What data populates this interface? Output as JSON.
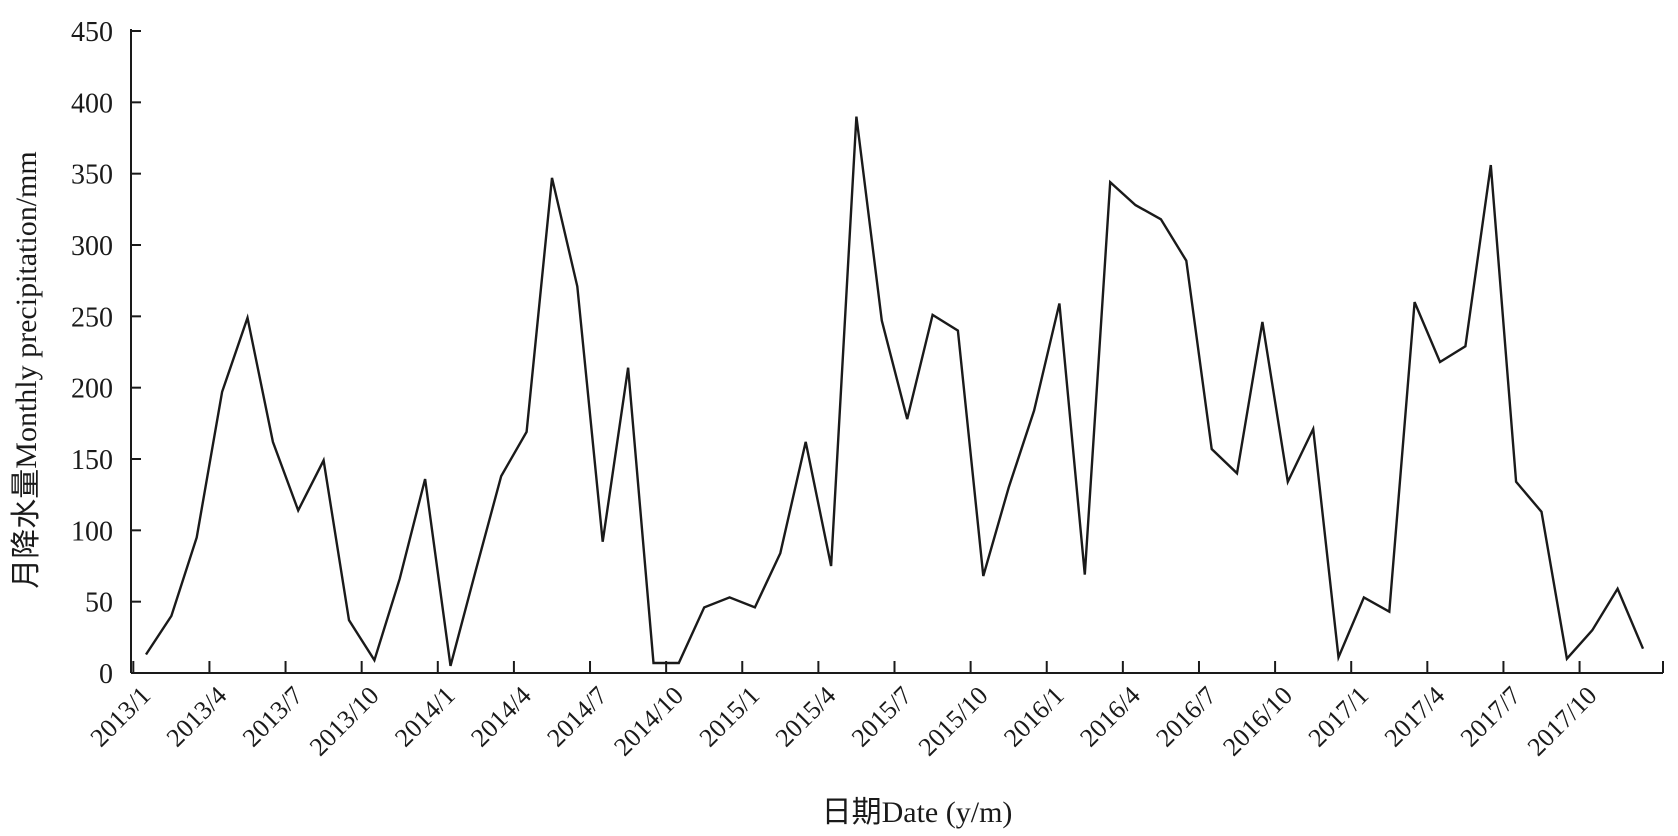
{
  "chart_data": {
    "type": "line",
    "title": "",
    "xlabel": "日期Date (y/m)",
    "ylabel": "月降水量Monthly precipitation/mm",
    "ylim": [
      0,
      450
    ],
    "yticks": [
      0,
      50,
      100,
      150,
      200,
      250,
      300,
      350,
      400,
      450
    ],
    "grid": false,
    "legend": "none",
    "line_color": "#1a1a1a",
    "x_tick_labels": [
      "2013/1",
      "2013/4",
      "2013/7",
      "2013/10",
      "2014/1",
      "2014/4",
      "2014/7",
      "2014/10",
      "2015/1",
      "2015/4",
      "2015/7",
      "2015/10",
      "2016/1",
      "2016/4",
      "2016/7",
      "2016/10",
      "2017/1",
      "2017/4",
      "2017/7",
      "2017/10"
    ],
    "x": [
      "2013/1",
      "2013/2",
      "2013/3",
      "2013/4",
      "2013/5",
      "2013/6",
      "2013/7",
      "2013/8",
      "2013/9",
      "2013/10",
      "2013/11",
      "2013/12",
      "2014/1",
      "2014/2",
      "2014/3",
      "2014/4",
      "2014/5",
      "2014/6",
      "2014/7",
      "2014/8",
      "2014/9",
      "2014/10",
      "2014/11",
      "2014/12",
      "2015/1",
      "2015/2",
      "2015/3",
      "2015/4",
      "2015/5",
      "2015/6",
      "2015/7",
      "2015/8",
      "2015/9",
      "2015/10",
      "2015/11",
      "2015/12",
      "2016/1",
      "2016/2",
      "2016/3",
      "2016/4",
      "2016/5",
      "2016/6",
      "2016/7",
      "2016/8",
      "2016/9",
      "2016/10",
      "2016/11",
      "2016/12",
      "2017/1",
      "2017/2",
      "2017/3",
      "2017/4",
      "2017/5",
      "2017/6",
      "2017/7",
      "2017/8",
      "2017/9",
      "2017/10",
      "2017/11",
      "2017/12"
    ],
    "series": [
      {
        "values": [
          13,
          40,
          95,
          197,
          249,
          162,
          114,
          149,
          37,
          9,
          66,
          136,
          5,
          72,
          138,
          169,
          347,
          271,
          92,
          214,
          7,
          7,
          46,
          53,
          46,
          84,
          162,
          75,
          390,
          247,
          178,
          251,
          240,
          68,
          130,
          184,
          259,
          69,
          344,
          328,
          318,
          289,
          157,
          140,
          246,
          134,
          171,
          11,
          53,
          43,
          260,
          218,
          229,
          356,
          134,
          113,
          10,
          30,
          59,
          17
        ]
      }
    ]
  }
}
